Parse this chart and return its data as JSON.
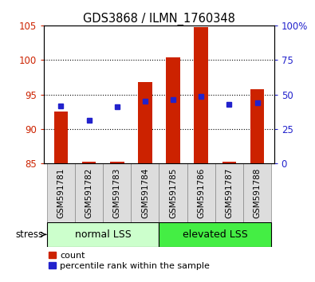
{
  "title": "GDS3868 / ILMN_1760348",
  "samples": [
    "GSM591781",
    "GSM591782",
    "GSM591783",
    "GSM591784",
    "GSM591785",
    "GSM591786",
    "GSM591787",
    "GSM591788"
  ],
  "red_bar_tops": [
    92.5,
    85.3,
    85.2,
    96.8,
    100.4,
    104.8,
    85.2,
    95.7
  ],
  "blue_markers": [
    93.3,
    91.3,
    93.2,
    94.0,
    94.3,
    94.7,
    93.5,
    93.8
  ],
  "bar_bottom": 85,
  "ylim_left": [
    85,
    105
  ],
  "ylim_right": [
    0,
    100
  ],
  "yticks_left": [
    85,
    90,
    95,
    100,
    105
  ],
  "yticks_right": [
    0,
    25,
    50,
    75,
    100
  ],
  "ytick_labels_right": [
    "0",
    "25",
    "50",
    "75",
    "100%"
  ],
  "grid_lines": [
    90,
    95,
    100
  ],
  "group1_label": "normal LSS",
  "group2_label": "elevated LSS",
  "group1_indices": [
    0,
    1,
    2,
    3
  ],
  "group2_indices": [
    4,
    5,
    6,
    7
  ],
  "stress_label": "stress",
  "legend_red_label": "count",
  "legend_blue_label": "percentile rank within the sample",
  "red_color": "#cc2200",
  "blue_color": "#2222cc",
  "group1_bg": "#ccffcc",
  "group2_bg": "#44ee44",
  "sample_bg": "#dddddd",
  "bar_width": 0.5,
  "figsize": [
    3.95,
    3.54
  ],
  "dpi": 100
}
